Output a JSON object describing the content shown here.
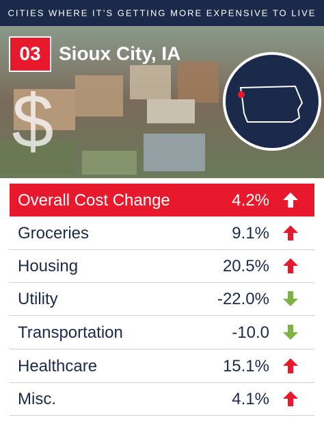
{
  "header": {
    "title": "CITIES WHERE IT’S GETTING MORE EXPENSIVE TO LIVE",
    "rank": "03",
    "city": "Sioux City, IA"
  },
  "table": {
    "rows": [
      [
        "Overall Cost Change",
        "4.2%"
      ],
      [
        "Groceries",
        "9.1%"
      ],
      [
        "Housing",
        "20.5%"
      ],
      [
        "Utility",
        "-22.0%"
      ],
      [
        "Transportation",
        "-10.0"
      ],
      [
        "Healthcare",
        "15.1%"
      ],
      [
        "Misc.",
        "4.1%"
      ]
    ]
  }
}
